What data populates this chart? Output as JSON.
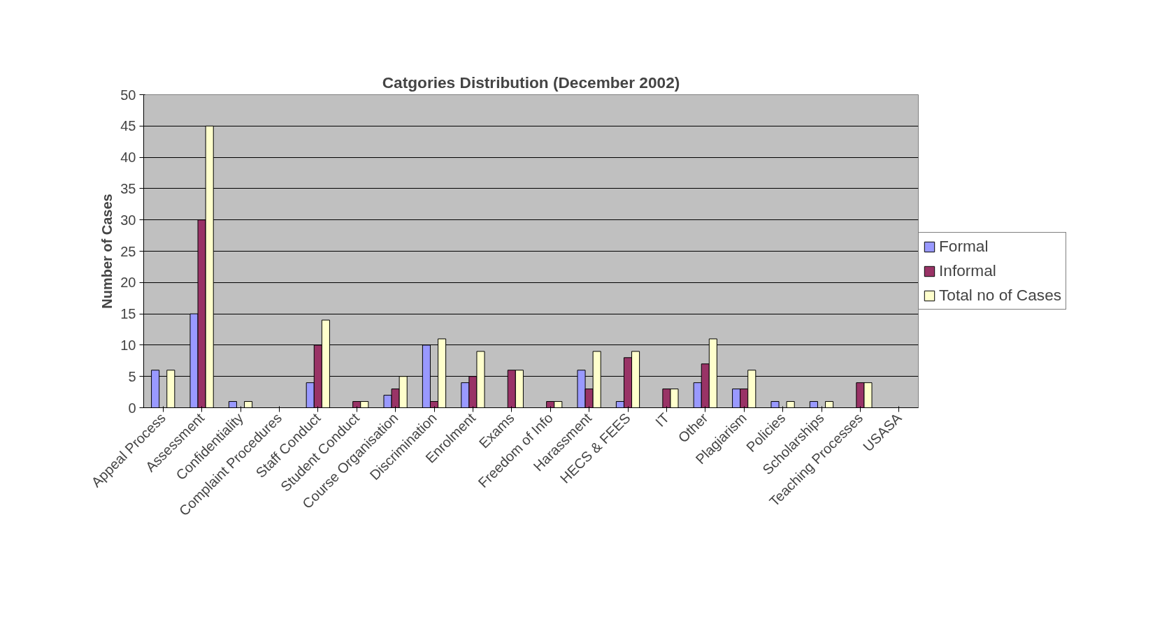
{
  "chart_data": {
    "type": "bar",
    "title": "Catgories Distribution (December 2002)",
    "ylabel": "Number of Cases",
    "categories": [
      "Appeal Process",
      "Assessment",
      "Confidentiality",
      "Complaint Procedures",
      "Staff Conduct",
      "Student Conduct",
      "Course Organisation",
      "Discrimination",
      "Enrolment",
      "Exams",
      "Freedom of Info",
      "Harassment",
      "HECS & FEES",
      "IT",
      "Other",
      "Plagiarism",
      "Policies",
      "Scholarships",
      "Teaching Processes",
      "USASA"
    ],
    "series": [
      {
        "name": "Formal",
        "color": "#9999ff",
        "values": [
          6,
          15,
          1,
          null,
          4,
          null,
          2,
          10,
          4,
          null,
          null,
          6,
          1,
          null,
          4,
          3,
          1,
          1,
          null,
          null
        ]
      },
      {
        "name": "Informal",
        "color": "#993366",
        "values": [
          null,
          30,
          null,
          null,
          10,
          1,
          3,
          1,
          5,
          6,
          1,
          3,
          8,
          3,
          7,
          3,
          null,
          null,
          4,
          null
        ]
      },
      {
        "name": "Total no of Cases",
        "color": "#ffffcc",
        "values": [
          6,
          45,
          1,
          null,
          14,
          1,
          5,
          11,
          9,
          6,
          1,
          9,
          9,
          3,
          11,
          6,
          1,
          1,
          4,
          null
        ]
      }
    ],
    "ylim": [
      0,
      50
    ],
    "yticks": [
      0,
      5,
      10,
      15,
      20,
      25,
      30,
      35,
      40,
      45,
      50
    ],
    "grid": "y",
    "legend": "right"
  }
}
